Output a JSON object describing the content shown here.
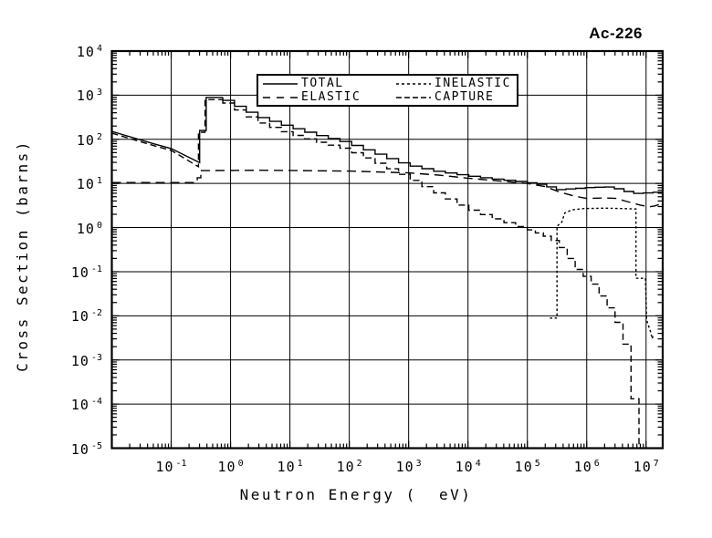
{
  "title": "Ac-226",
  "colors": {
    "foreground": "#000000",
    "background": "#ffffff"
  },
  "legend": {
    "position": "top-center",
    "items": [
      {
        "label": "TOTAL",
        "dash": "solid"
      },
      {
        "label": "ELASTIC",
        "dash": "long-dash"
      },
      {
        "label": "INELASTIC",
        "dash": "short-dash"
      },
      {
        "label": "CAPTURE",
        "dash": "med-dash"
      }
    ]
  },
  "chart_data": {
    "type": "line",
    "title": "Ac-226",
    "xlabel": "Neutron Energy (  eV)",
    "ylabel": "Cross Section (barns)",
    "xscale": "log",
    "yscale": "log",
    "xlim": [
      0.01,
      19000000
    ],
    "ylim": [
      1e-05,
      10000
    ],
    "grid": true,
    "tick_base": "10",
    "x_tick_exponents": [
      -1,
      0,
      1,
      2,
      3,
      4,
      5,
      6,
      7
    ],
    "y_tick_exponents": [
      4,
      3,
      2,
      1,
      0,
      -1,
      -2,
      -3,
      -4,
      -5
    ],
    "points_are_log10": true,
    "series": [
      {
        "name": "TOTAL",
        "dash": "solid",
        "segments": [
          {
            "mode": "line",
            "points": [
              [
                -2,
                2.18
              ],
              [
                -1.3,
                1.9
              ],
              [
                -1,
                1.79
              ],
              [
                -0.52,
                1.47
              ],
              [
                -0.52,
                2.2
              ],
              [
                -0.41,
                2.2
              ],
              [
                -0.41,
                2.95
              ],
              [
                -0.13,
                2.95
              ]
            ]
          },
          {
            "mode": "steps",
            "step": 0.2,
            "points": [
              [
                -0.13,
                2.95
              ],
              [
                0.5,
                2.52
              ],
              [
                1,
                2.3
              ],
              [
                1.5,
                2.1
              ],
              [
                2,
                1.93
              ],
              [
                2.5,
                1.68
              ],
              [
                3,
                1.43
              ],
              [
                3.5,
                1.28
              ],
              [
                4,
                1.18
              ],
              [
                4.5,
                1.1
              ],
              [
                5,
                1.03
              ]
            ]
          },
          {
            "mode": "steps",
            "step": 0.16,
            "points": [
              [
                5,
                1.03
              ],
              [
                5.3,
                0.97
              ],
              [
                5.55,
                0.86
              ],
              [
                5.8,
                0.88
              ],
              [
                6.1,
                0.91
              ],
              [
                6.4,
                0.92
              ],
              [
                6.65,
                0.85
              ],
              [
                6.8,
                0.77
              ],
              [
                7.0,
                0.78
              ],
              [
                7.28,
                0.81
              ]
            ]
          }
        ]
      },
      {
        "name": "ELASTIC",
        "dash": "long-dash",
        "segments": [
          {
            "mode": "line",
            "points": [
              [
                -2,
                1.02
              ],
              [
                -0.56,
                1.02
              ],
              [
                -0.56,
                1.13
              ],
              [
                -0.5,
                1.13
              ],
              [
                -0.5,
                1.29
              ]
            ]
          },
          {
            "mode": "line",
            "points": [
              [
                -0.5,
                1.29
              ],
              [
                0.5,
                1.3
              ],
              [
                2,
                1.28
              ],
              [
                3,
                1.24
              ],
              [
                3.5,
                1.19
              ],
              [
                4,
                1.12
              ],
              [
                4.5,
                1.06
              ],
              [
                5,
                1.0
              ],
              [
                5.3,
                0.93
              ],
              [
                5.55,
                0.8
              ],
              [
                5.8,
                0.71
              ],
              [
                6.0,
                0.66
              ],
              [
                6.3,
                0.67
              ],
              [
                6.5,
                0.66
              ],
              [
                6.65,
                0.6
              ],
              [
                6.9,
                0.51
              ],
              [
                7.05,
                0.47
              ],
              [
                7.15,
                0.49
              ],
              [
                7.28,
                0.55
              ]
            ]
          }
        ]
      },
      {
        "name": "INELASTIC",
        "dash": "short-dash",
        "segments": [
          {
            "mode": "line",
            "points": [
              [
                5.38,
                -2.05
              ],
              [
                5.5,
                -2.05
              ],
              [
                5.5,
                0.03
              ],
              [
                5.58,
                0.12
              ],
              [
                5.63,
                0.33
              ],
              [
                5.75,
                0.4
              ],
              [
                5.95,
                0.43
              ],
              [
                6.3,
                0.44
              ],
              [
                6.6,
                0.43
              ],
              [
                6.83,
                0.42
              ],
              [
                6.83,
                -1.15
              ],
              [
                6.99,
                -1.15
              ],
              [
                7.01,
                -2.1
              ],
              [
                7.08,
                -2.38
              ],
              [
                7.1,
                -2.52
              ],
              [
                7.13,
                -2.42
              ]
            ]
          }
        ]
      },
      {
        "name": "CAPTURE",
        "dash": "med-dash",
        "segments": [
          {
            "mode": "line",
            "points": [
              [
                -2,
                2.14
              ],
              [
                -1.3,
                1.86
              ],
              [
                -1,
                1.75
              ],
              [
                -0.54,
                1.38
              ],
              [
                -0.54,
                2.16
              ],
              [
                -0.43,
                2.16
              ],
              [
                -0.43,
                2.9
              ],
              [
                -0.13,
                2.9
              ]
            ]
          },
          {
            "mode": "steps",
            "step": 0.2,
            "points": [
              [
                -0.13,
                2.9
              ],
              [
                0.5,
                2.4
              ],
              [
                1,
                2.15
              ],
              [
                1.5,
                1.95
              ],
              [
                2,
                1.78
              ],
              [
                2.5,
                1.48
              ],
              [
                3,
                1.16
              ],
              [
                3.5,
                0.8
              ],
              [
                4,
                0.45
              ],
              [
                4.5,
                0.2
              ],
              [
                5,
                -0.02
              ]
            ]
          },
          {
            "mode": "steps",
            "step": 0.13,
            "points": [
              [
                5,
                -0.02
              ],
              [
                5.3,
                -0.17
              ],
              [
                5.55,
                -0.35
              ],
              [
                5.75,
                -0.72
              ],
              [
                5.9,
                -1.0
              ],
              [
                6.1,
                -1.2
              ],
              [
                6.3,
                -1.6
              ],
              [
                6.5,
                -2.0
              ],
              [
                6.65,
                -2.5
              ],
              [
                6.77,
                -3.1
              ],
              [
                6.8,
                -3.7
              ],
              [
                6.85,
                -4.4
              ],
              [
                6.88,
                -5.0
              ]
            ]
          }
        ]
      }
    ]
  }
}
